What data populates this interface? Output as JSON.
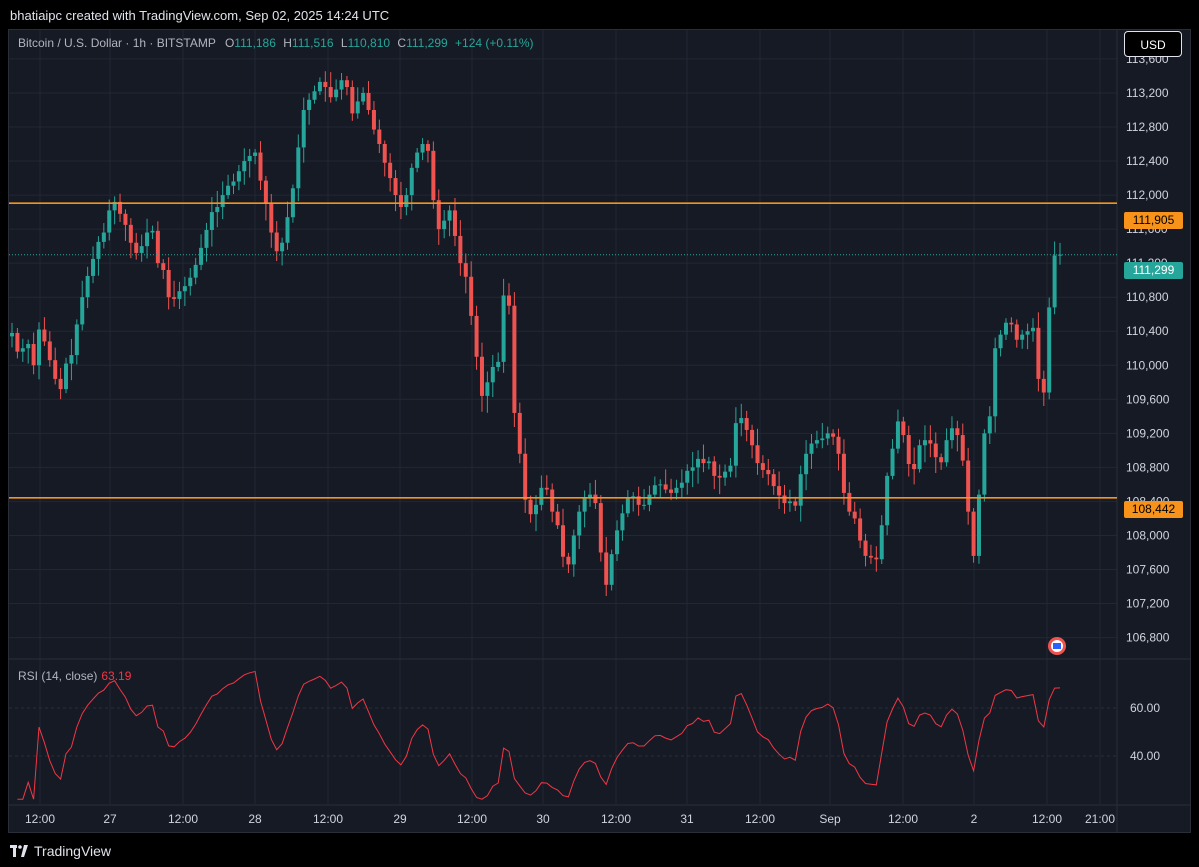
{
  "header": {
    "credit": "bhatiaipc created with TradingView.com, Sep 02, 2025 14:24 UTC"
  },
  "legend": {
    "symbol": "Bitcoin / U.S. Dollar · 1h · BITSTAMP",
    "open_label": "O",
    "open": "111,186",
    "high_label": "H",
    "high": "111,516",
    "low_label": "L",
    "low": "110,810",
    "close_label": "C",
    "close": "111,299",
    "change": "+124 (+0.11%)"
  },
  "currency_button": "USD",
  "rsi": {
    "label": "RSI (14, close)",
    "value": "63.19"
  },
  "footer": {
    "brand": "TradingView"
  },
  "colors": {
    "up": "#26a69a",
    "down": "#ef5350",
    "level": "#f7931a",
    "rsi_line": "#f23645",
    "background": "#161a25"
  },
  "chart_data": {
    "type": "candlestick",
    "interval": "1h",
    "y_axis": {
      "ticks": [
        106800,
        107200,
        107600,
        108000,
        108400,
        108800,
        109200,
        109600,
        110000,
        110400,
        110800,
        111200,
        111600,
        112000,
        112400,
        112800,
        113200,
        113600
      ],
      "range": [
        106560,
        113940
      ]
    },
    "x_axis": {
      "ticks": [
        "12:00",
        "27",
        "12:00",
        "28",
        "12:00",
        "29",
        "12:00",
        "30",
        "12:00",
        "31",
        "12:00",
        "Sep",
        "12:00",
        "2",
        "12:00",
        "21:00"
      ]
    },
    "horizontal_levels": [
      {
        "value": 111905,
        "label": "111,905"
      },
      {
        "value": 108442,
        "label": "108,442"
      }
    ],
    "last_price": {
      "value": 111299,
      "label": "111,299"
    },
    "closes": [
      110380,
      110160,
      110200,
      110250,
      110000,
      110420,
      110280,
      110060,
      109840,
      109720,
      110020,
      110120,
      110480,
      110800,
      111050,
      111250,
      111450,
      111560,
      111820,
      111920,
      111780,
      111650,
      111440,
      111320,
      111400,
      111560,
      111580,
      111200,
      111120,
      110800,
      110780,
      110870,
      110930,
      111030,
      111180,
      111380,
      111590,
      111800,
      111860,
      112000,
      112110,
      112160,
      112280,
      112400,
      112460,
      112500,
      112170,
      111900,
      111560,
      111340,
      111440,
      111740,
      112080,
      112560,
      113000,
      113120,
      113220,
      113330,
      113270,
      113150,
      113240,
      113350,
      113270,
      112960,
      113100,
      113200,
      113000,
      112770,
      112600,
      112380,
      112200,
      112000,
      111860,
      112000,
      112320,
      112500,
      112600,
      112520,
      111940,
      111600,
      111700,
      111820,
      111520,
      111200,
      111040,
      110580,
      110100,
      109640,
      109800,
      109980,
      110040,
      110820,
      110700,
      109440,
      108960,
      108420,
      108250,
      108360,
      108560,
      108540,
      108280,
      108120,
      107750,
      107660,
      108000,
      108280,
      108440,
      108480,
      108380,
      107800,
      107420,
      107780,
      108060,
      108260,
      108440,
      108460,
      108360,
      108360,
      108480,
      108590,
      108600,
      108540,
      108500,
      108560,
      108620,
      108760,
      108800,
      108900,
      108850,
      108870,
      108700,
      108680,
      108750,
      108820,
      109320,
      109380,
      109240,
      109060,
      108850,
      108770,
      108720,
      108580,
      108470,
      108380,
      108400,
      108350,
      108720,
      108960,
      109080,
      109120,
      109140,
      109200,
      109160,
      108960,
      108500,
      108280,
      108200,
      107940,
      107760,
      107740,
      107720,
      108120,
      108700,
      109020,
      109340,
      109180,
      108840,
      108780,
      109060,
      109120,
      109080,
      108920,
      108860,
      109120,
      109260,
      109180,
      108880,
      108280,
      107760,
      108480,
      109200,
      109400,
      110200,
      110360,
      110500,
      110480,
      110300,
      110360,
      110400,
      110440,
      109840,
      109680,
      110680,
      111290,
      111300
    ]
  }
}
